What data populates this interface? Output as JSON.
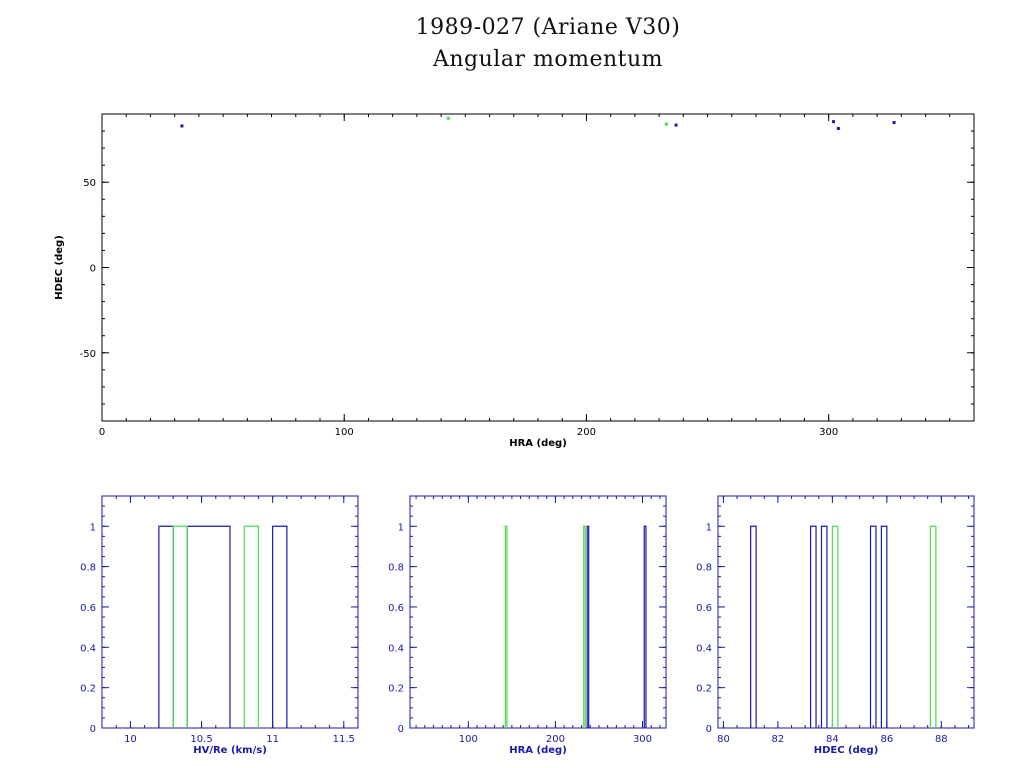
{
  "header": {
    "title_line1": "1989-027 (Ariane V30)",
    "title_line2": "Angular momentum"
  },
  "colors": {
    "blue": "#1a1aa6",
    "green": "#4fd94f",
    "axis": "#000000"
  },
  "chart_data": [
    {
      "type": "scatter",
      "xlabel": "HRA (deg)",
      "ylabel": "HDEC (deg)",
      "xlim": [
        0,
        360
      ],
      "ylim": [
        -90,
        90
      ],
      "xticks": [
        0,
        100,
        200,
        300
      ],
      "xtick_labels": [
        "0",
        "100",
        "200",
        "300"
      ],
      "yticks": [
        -50,
        0,
        50
      ],
      "ytick_labels": [
        "-50",
        "0",
        "50"
      ],
      "series": [
        {
          "color": "blue",
          "x": [
            33,
            237,
            302,
            304,
            327
          ],
          "y": [
            83,
            83.5,
            85.5,
            81.5,
            85
          ]
        },
        {
          "color": "green",
          "x": [
            143,
            233
          ],
          "y": [
            87.5,
            84
          ]
        }
      ]
    },
    {
      "type": "bar",
      "subtype": "histogram",
      "xlabel": "HV/Re (km/s)",
      "ylabel": "",
      "xlim": [
        9.8,
        11.6
      ],
      "ylim": [
        0,
        1.15
      ],
      "xticks": [
        10,
        10.5,
        11,
        11.5
      ],
      "xtick_labels": [
        "10",
        "10.5",
        "11",
        "11.5"
      ],
      "yticks": [
        0,
        0.2,
        0.4,
        0.6,
        0.8,
        1
      ],
      "ytick_labels": [
        "0",
        "0.2",
        "0.4",
        "0.6",
        "0.8",
        "1"
      ],
      "series": [
        {
          "color": "blue",
          "bins": [
            [
              10.2,
              10.3
            ],
            [
              10.4,
              10.7
            ],
            [
              11.0,
              11.1
            ]
          ],
          "values": [
            1,
            1,
            1
          ]
        },
        {
          "color": "green",
          "bins": [
            [
              10.3,
              10.4
            ],
            [
              10.8,
              10.9
            ]
          ],
          "values": [
            1,
            1
          ]
        }
      ]
    },
    {
      "type": "bar",
      "subtype": "histogram",
      "xlabel": "HRA (deg)",
      "ylabel": "",
      "xlim": [
        33,
        327
      ],
      "ylim": [
        0,
        1.15
      ],
      "xticks": [
        100,
        200,
        300
      ],
      "xtick_labels": [
        "100",
        "200",
        "300"
      ],
      "yticks": [
        0,
        0.2,
        0.4,
        0.6,
        0.8,
        1
      ],
      "ytick_labels": [
        "0",
        "0.2",
        "0.4",
        "0.6",
        "0.8",
        "1"
      ],
      "series": [
        {
          "color": "blue",
          "bins": [
            [
              236.5,
              237.5
            ],
            [
              302,
              304
            ]
          ],
          "values": [
            1,
            1
          ]
        },
        {
          "color": "green",
          "bins": [
            [
              142.5,
              143.5
            ],
            [
              232.5,
              233.5
            ]
          ],
          "values": [
            1,
            1
          ]
        }
      ]
    },
    {
      "type": "bar",
      "subtype": "histogram",
      "xlabel": "HDEC (deg)",
      "ylabel": "",
      "xlim": [
        79.8,
        89.2
      ],
      "ylim": [
        0,
        1.15
      ],
      "xticks": [
        80,
        82,
        84,
        86,
        88
      ],
      "xtick_labels": [
        "80",
        "82",
        "84",
        "86",
        "88"
      ],
      "yticks": [
        0,
        0.2,
        0.4,
        0.6,
        0.8,
        1
      ],
      "ytick_labels": [
        "0",
        "0.2",
        "0.4",
        "0.6",
        "0.8",
        "1"
      ],
      "series": [
        {
          "color": "blue",
          "bins": [
            [
              81,
              81.2
            ],
            [
              83.2,
              83.4
            ],
            [
              83.6,
              83.8
            ],
            [
              85.4,
              85.6
            ],
            [
              85.8,
              86.0
            ]
          ],
          "values": [
            1,
            1,
            1,
            1,
            1
          ]
        },
        {
          "color": "green",
          "bins": [
            [
              84.0,
              84.2
            ],
            [
              87.6,
              87.8
            ]
          ],
          "values": [
            1,
            1
          ]
        }
      ]
    }
  ]
}
